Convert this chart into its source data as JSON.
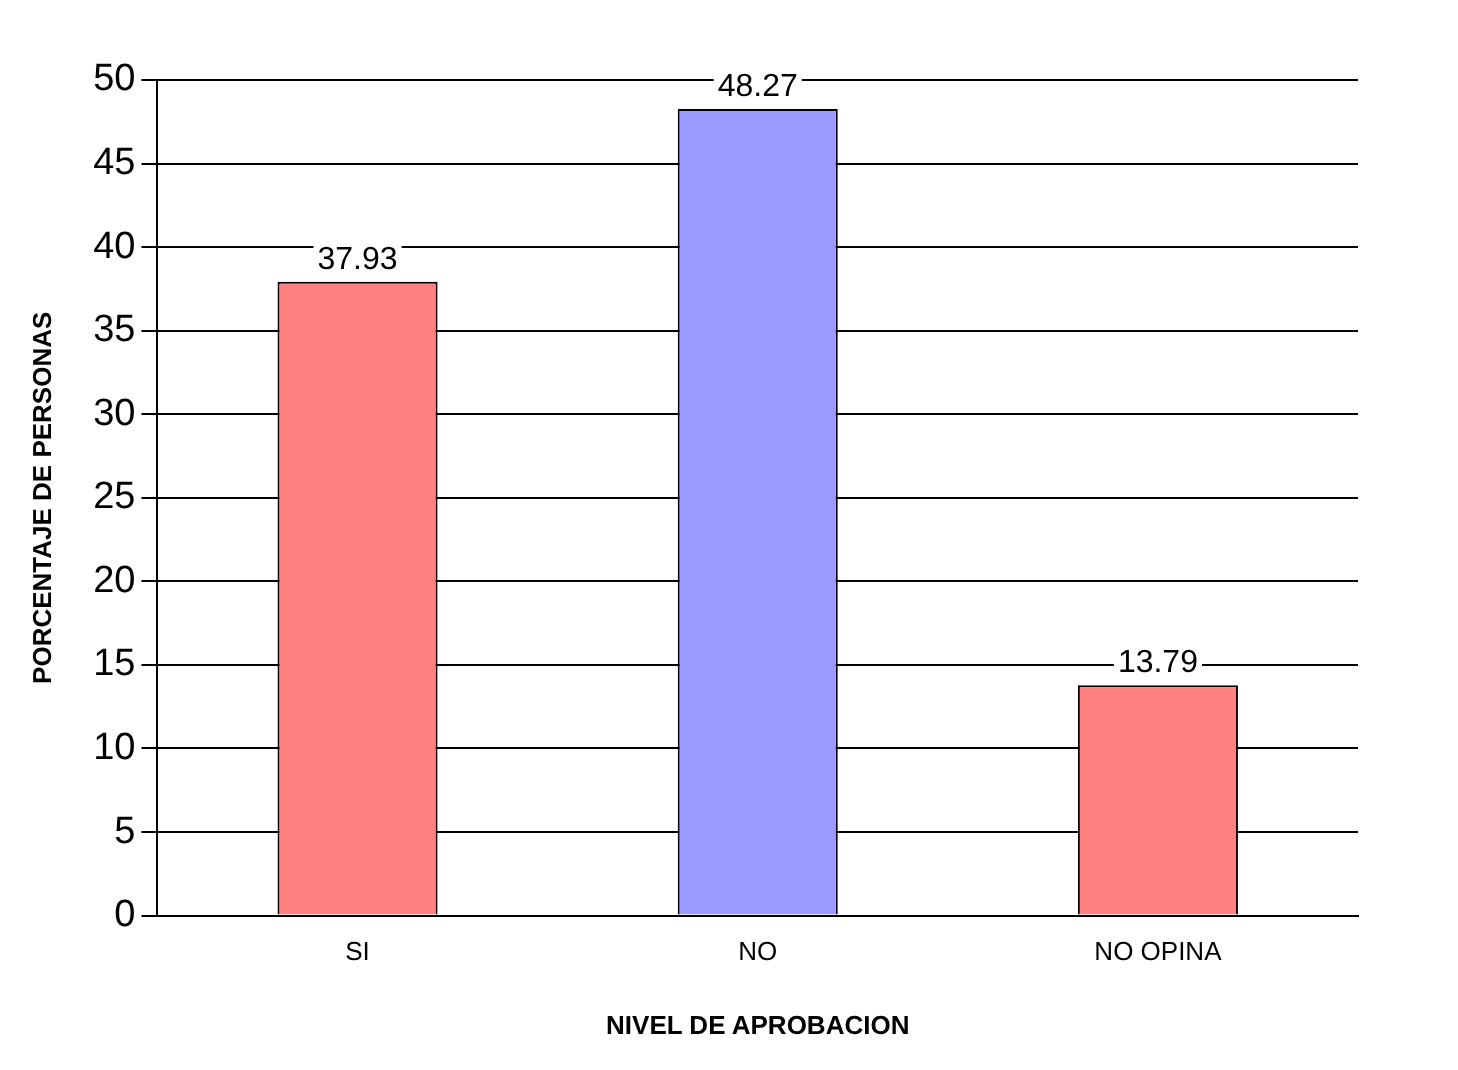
{
  "chart_data": {
    "type": "bar",
    "xlabel": "NIVEL DE APROBACION",
    "ylabel": "PORCENTAJE DE PERSONAS",
    "categories": [
      "SI",
      "NO",
      "NO OPINA"
    ],
    "values": [
      37.93,
      48.27,
      13.79
    ],
    "colors": [
      "#ff8080",
      "#9999ff",
      "#ff8080"
    ],
    "ylim": [
      0,
      50
    ],
    "yticks": [
      0,
      5,
      10,
      15,
      20,
      25,
      30,
      35,
      40,
      45,
      50
    ],
    "grid": "y",
    "data_labels": true
  }
}
